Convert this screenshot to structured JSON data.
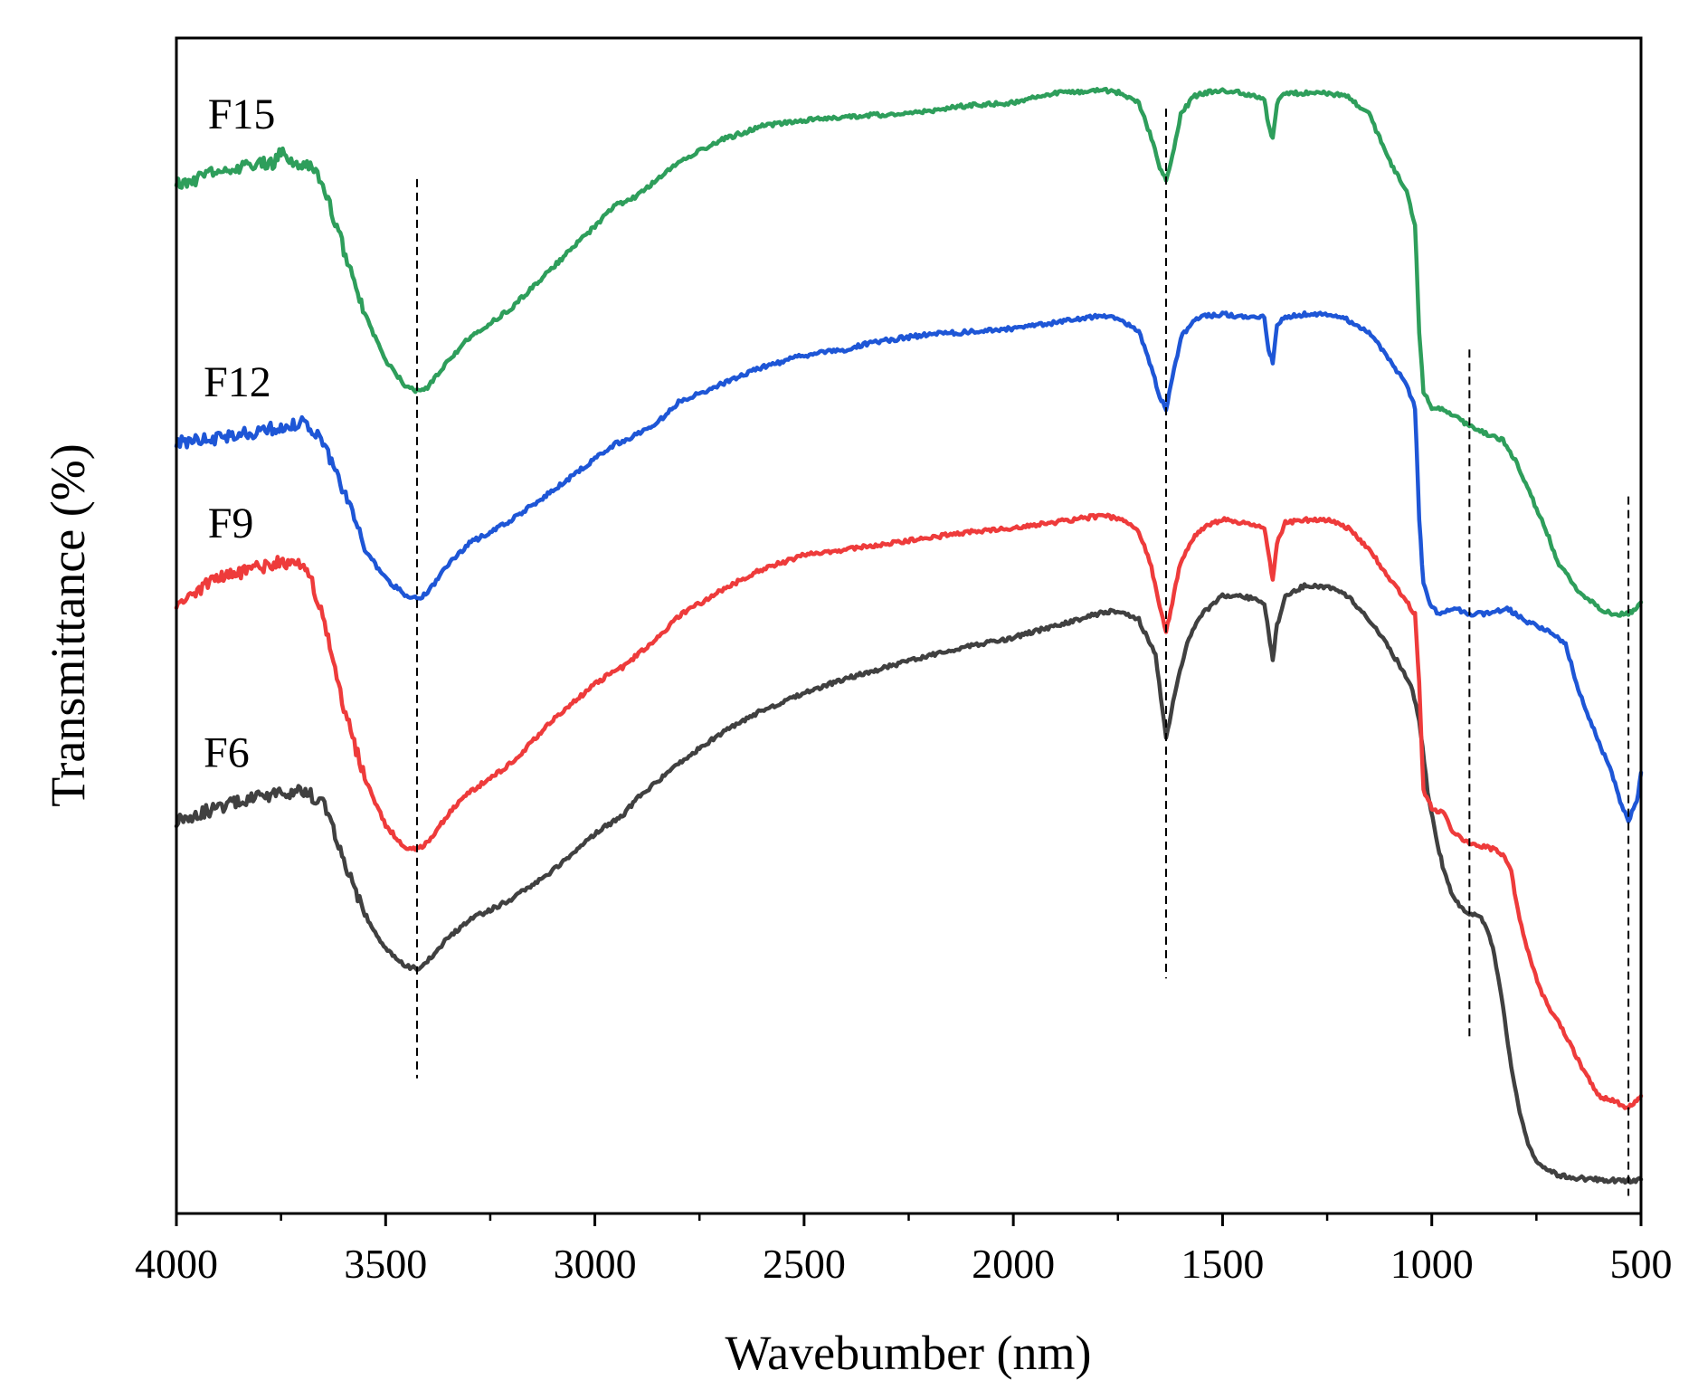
{
  "chart_data": {
    "type": "line",
    "title": "",
    "xlabel": "Wavebumber (nm)",
    "ylabel": "Transmittance (%)",
    "xlim": [
      4000,
      500
    ],
    "ylim": [
      0,
      100
    ],
    "x_reversed": true,
    "y_ticks_shown": false,
    "grid": false,
    "legend": "inline labels",
    "x_ticks": [
      "4000",
      "3500",
      "3000",
      "2500",
      "2000",
      "1500",
      "1000",
      "500"
    ],
    "x_tick_values": [
      4000,
      3500,
      3000,
      2500,
      2000,
      1500,
      1000,
      500
    ],
    "reference_lines": [
      {
        "x": 3425,
        "y_from": 11.5,
        "y_to": 88
      },
      {
        "x": 1635,
        "y_from": 20,
        "y_to": 94
      },
      {
        "x": 910,
        "y_from": 15,
        "y_to": 73.5
      },
      {
        "x": 530,
        "y_from": 1.5,
        "y_to": 61
      }
    ],
    "series": [
      {
        "name": "F6",
        "color": "#404040",
        "label_at": {
          "x": 3935,
          "y": 38
        },
        "x": [
          4000,
          3900,
          3800,
          3700,
          3650,
          3600,
          3550,
          3500,
          3450,
          3425,
          3400,
          3350,
          3300,
          3200,
          3100,
          3000,
          2930,
          2900,
          2800,
          2700,
          2600,
          2500,
          2400,
          2300,
          2200,
          2100,
          2000,
          1900,
          1800,
          1760,
          1700,
          1660,
          1635,
          1610,
          1580,
          1550,
          1500,
          1450,
          1400,
          1390,
          1380,
          1370,
          1350,
          1300,
          1250,
          1200,
          1150,
          1100,
          1050,
          1030,
          1010,
          990,
          970,
          950,
          930,
          910,
          890,
          870,
          850,
          830,
          810,
          790,
          770,
          750,
          730,
          700,
          650,
          600,
          550,
          530,
          500
        ],
        "y": [
          33.5,
          34.5,
          35.5,
          36,
          35,
          30,
          25.5,
          22.5,
          21,
          20.8,
          21.5,
          23.5,
          25,
          26.7,
          29.2,
          32.3,
          34,
          35.3,
          38.3,
          40.8,
          42.8,
          44.3,
          45.5,
          46.5,
          47.5,
          48.3,
          49,
          50,
          51,
          51.3,
          50.5,
          47.5,
          40.3,
          45,
          49,
          51,
          52.5,
          52.5,
          52,
          49.5,
          47,
          50,
          52.5,
          53.5,
          53.3,
          52.5,
          50.5,
          48,
          45,
          42,
          36,
          32,
          29,
          27,
          26,
          25.5,
          25.5,
          24.5,
          22,
          17.5,
          12.5,
          8.5,
          6,
          4.5,
          3.8,
          3.3,
          3,
          2.9,
          2.8,
          2.8,
          2.9
        ]
      },
      {
        "name": "F9",
        "color": "#ee3b3b",
        "label_at": {
          "x": 3925,
          "y": 57.5
        },
        "x": [
          4000,
          3950,
          3900,
          3850,
          3800,
          3750,
          3700,
          3680,
          3650,
          3600,
          3550,
          3500,
          3450,
          3425,
          3400,
          3350,
          3300,
          3200,
          3100,
          3000,
          2950,
          2930,
          2900,
          2850,
          2800,
          2700,
          2600,
          2500,
          2400,
          2300,
          2200,
          2100,
          2000,
          1900,
          1800,
          1770,
          1740,
          1700,
          1670,
          1650,
          1635,
          1620,
          1600,
          1570,
          1550,
          1500,
          1450,
          1400,
          1390,
          1380,
          1370,
          1350,
          1300,
          1250,
          1200,
          1150,
          1100,
          1060,
          1040,
          1030,
          1020,
          1000,
          970,
          950,
          930,
          910,
          880,
          850,
          830,
          810,
          790,
          760,
          740,
          720,
          700,
          650,
          600,
          560,
          530,
          510,
          500
        ],
        "y": [
          52,
          53,
          54,
          54.5,
          55,
          55.5,
          55,
          54,
          51,
          43,
          37,
          33,
          31,
          31,
          31.5,
          34,
          35.8,
          38.3,
          42,
          45,
          46.3,
          46.5,
          47.5,
          49,
          50.8,
          53,
          54.8,
          56,
          56.5,
          57,
          57.5,
          58,
          58.3,
          58.8,
          59.3,
          59.3,
          59,
          58,
          55,
          51.5,
          49.5,
          52,
          55.5,
          57.5,
          58.3,
          59,
          58.8,
          58.3,
          56,
          54,
          57,
          58.8,
          59,
          59,
          58.3,
          56.5,
          54,
          52,
          51,
          45,
          36,
          34.5,
          34,
          32.5,
          32,
          31.5,
          31.2,
          31,
          30.5,
          29,
          25,
          21,
          19,
          17.5,
          16.5,
          13,
          10,
          9.5,
          9,
          9.5,
          10
        ]
      },
      {
        "name": "F12",
        "color": "#1e56d6",
        "label_at": {
          "x": 3935,
          "y": 69.5
        },
        "x": [
          4000,
          3950,
          3900,
          3850,
          3800,
          3750,
          3700,
          3680,
          3650,
          3600,
          3550,
          3500,
          3450,
          3425,
          3400,
          3350,
          3300,
          3200,
          3100,
          3000,
          2950,
          2930,
          2900,
          2850,
          2800,
          2700,
          2600,
          2500,
          2400,
          2350,
          2300,
          2200,
          2100,
          2000,
          1900,
          1800,
          1770,
          1740,
          1700,
          1670,
          1650,
          1635,
          1620,
          1600,
          1570,
          1550,
          1500,
          1450,
          1400,
          1390,
          1380,
          1370,
          1350,
          1300,
          1250,
          1200,
          1150,
          1100,
          1060,
          1040,
          1030,
          1020,
          1000,
          980,
          950,
          930,
          910,
          880,
          850,
          820,
          800,
          780,
          750,
          720,
          700,
          680,
          650,
          600,
          570,
          550,
          530,
          510,
          500
        ],
        "y": [
          65.5,
          65.8,
          66,
          66.3,
          66.5,
          67,
          67.2,
          67,
          65.5,
          61.5,
          56.5,
          54,
          52.5,
          52.3,
          52.8,
          55.3,
          57,
          59,
          61.5,
          64.2,
          65.5,
          65.6,
          66.3,
          67.3,
          69,
          70.5,
          72,
          73,
          73.5,
          74,
          74.3,
          74.8,
          75,
          75.3,
          75.8,
          76.3,
          76.3,
          76,
          75,
          72,
          69.5,
          68.5,
          71,
          74.5,
          76,
          76.3,
          76.5,
          76.3,
          76.3,
          73.5,
          72.5,
          75.5,
          76.3,
          76.5,
          76.5,
          76,
          75,
          72.5,
          70.5,
          68.5,
          59,
          53.5,
          51.5,
          51,
          51.5,
          51.3,
          51,
          51,
          51.2,
          51.5,
          51,
          50.5,
          50,
          49.5,
          49,
          48.5,
          44.5,
          40,
          37.5,
          35,
          33.5,
          35,
          37.5
        ]
      },
      {
        "name": "F15",
        "color": "#2e9e5b",
        "label_at": {
          "x": 3925,
          "y": 92.3
        },
        "x": [
          4000,
          3950,
          3900,
          3850,
          3800,
          3770,
          3750,
          3730,
          3700,
          3680,
          3650,
          3600,
          3550,
          3500,
          3450,
          3425,
          3400,
          3350,
          3300,
          3200,
          3100,
          3000,
          2950,
          2930,
          2900,
          2850,
          2800,
          2700,
          2600,
          2500,
          2400,
          2300,
          2200,
          2100,
          2000,
          1900,
          1800,
          1770,
          1740,
          1700,
          1670,
          1650,
          1635,
          1620,
          1600,
          1570,
          1550,
          1500,
          1450,
          1400,
          1390,
          1380,
          1370,
          1350,
          1300,
          1250,
          1200,
          1150,
          1100,
          1060,
          1040,
          1030,
          1020,
          1000,
          980,
          950,
          930,
          910,
          880,
          850,
          830,
          800,
          780,
          750,
          720,
          700,
          650,
          600,
          570,
          550,
          530,
          510,
          500
        ],
        "y": [
          87.5,
          88,
          88.8,
          89,
          89.3,
          89.3,
          90.5,
          89.3,
          89,
          89.3,
          87.5,
          82,
          76.5,
          72.5,
          70.3,
          70,
          70.3,
          72.5,
          74.5,
          77,
          80.5,
          84,
          85.8,
          86,
          86.5,
          88,
          89.5,
          91.3,
          92.5,
          93,
          93.3,
          93.5,
          93.8,
          94.3,
          94.5,
          95.3,
          95.5,
          95.5,
          95.3,
          94.5,
          91.5,
          89,
          88,
          90,
          93.5,
          95,
          95.3,
          95.5,
          95.3,
          94.8,
          92.5,
          91.5,
          94.5,
          95.3,
          95.3,
          95.3,
          95,
          93.5,
          89.5,
          87,
          84,
          75,
          70,
          68.5,
          68.5,
          68,
          67.5,
          67,
          66.5,
          66,
          65.8,
          64,
          62.5,
          60,
          57.5,
          55.5,
          53,
          51.5,
          51,
          51,
          51,
          51.5,
          52
        ]
      }
    ]
  }
}
